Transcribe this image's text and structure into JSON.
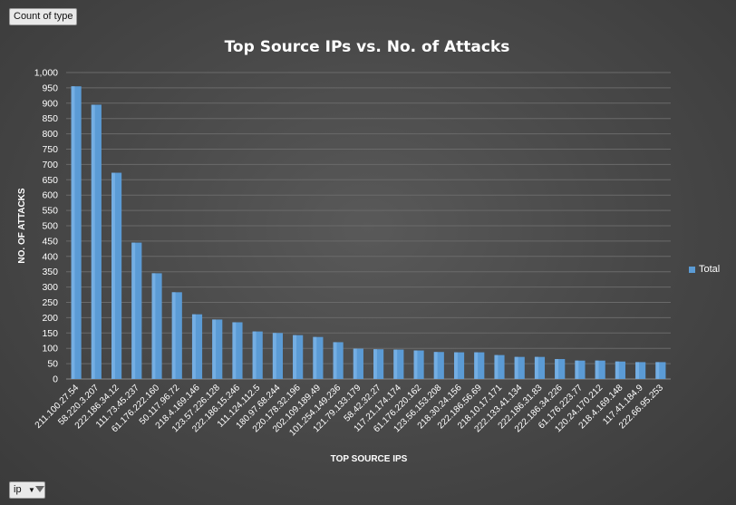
{
  "pivot_field_button": "Count of type",
  "filter_button": {
    "label": "ip",
    "arrow": "▼"
  },
  "colors": {
    "bar": "#5b9bd5",
    "bar_highlight": "#74aee3",
    "grid": "#6a6a6a",
    "text": "#ffffff"
  },
  "chart_data": {
    "type": "bar",
    "title": "Top Source IPs vs. No. of Attacks",
    "xlabel": "TOP SOURCE IPS",
    "ylabel": "NO. OF ATTACKS",
    "ylim": [
      0,
      1000
    ],
    "yticks": [
      "0",
      "50",
      "100",
      "150",
      "200",
      "250",
      "300",
      "350",
      "400",
      "450",
      "500",
      "550",
      "600",
      "650",
      "700",
      "750",
      "800",
      "850",
      "900",
      "950",
      "1,000"
    ],
    "grid": true,
    "legend_position": "right",
    "categories": [
      "211.100.27.54",
      "58.220.3.207",
      "222.186.34.12",
      "111.73.45.237",
      "61.176.222.160",
      "50.117.96.72",
      "218.4.169.146",
      "123.57.226.128",
      "222.186.15.246",
      "111.124.112.5",
      "180.97.68.244",
      "220.178.32.196",
      "202.109.189.49",
      "101.254.149.236",
      "121.79.133.179",
      "58.42.32.27",
      "117.21.174.174",
      "61.176.220.162",
      "123.56.153.208",
      "218.30.24.156",
      "222.186.56.69",
      "218.10.17.171",
      "222.133.41.134",
      "222.186.31.83",
      "222.186.34.226",
      "61.176.223.77",
      "120.24.170.212",
      "218.4.169.148",
      "117.41.184.9",
      "222.66.95.253"
    ],
    "series": [
      {
        "name": "Total",
        "values": [
          955,
          895,
          673,
          445,
          345,
          283,
          211,
          194,
          185,
          155,
          150,
          143,
          137,
          120,
          99,
          97,
          96,
          93,
          88,
          87,
          87,
          78,
          72,
          72,
          65,
          60,
          60,
          57,
          55,
          55
        ]
      }
    ]
  }
}
